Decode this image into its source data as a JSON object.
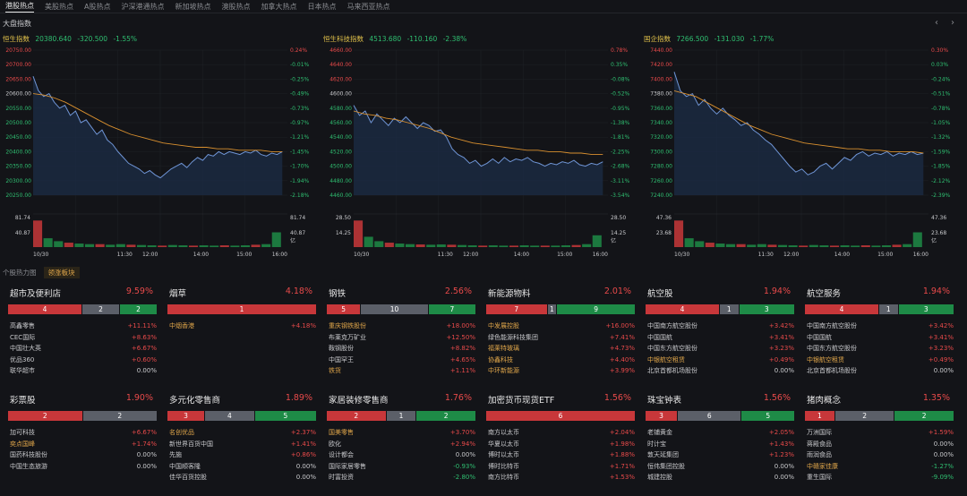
{
  "tabs": [
    "港股热点",
    "美股热点",
    "A股热点",
    "沪深港通热点",
    "新加坡热点",
    "澳股热点",
    "加拿大热点",
    "日本热点",
    "马来西亚热点"
  ],
  "section_title": "大盘指数",
  "nav": {
    "prev": "‹",
    "next": "›"
  },
  "charts": [
    {
      "name": "恒生指数",
      "value": "20380.640",
      "change": "-320.500",
      "pct": "-1.55%",
      "left_ticks": [
        "20750.00",
        "20700.00",
        "20650.00",
        "20600.00",
        "20550.00",
        "20500.00",
        "20450.00",
        "20400.00",
        "20350.00",
        "20300.00",
        "20250.00"
      ],
      "right_ticks": [
        "0.24%",
        "-0.01%",
        "-0.25%",
        "-0.49%",
        "-0.73%",
        "-0.97%",
        "-1.21%",
        "-1.45%",
        "-1.70%",
        "-1.94%",
        "-2.18%"
      ],
      "vol_top": "81.74",
      "vol_mid": "40.87",
      "vol_unit": "亿",
      "x_labels": [
        "10/30",
        "11:30",
        "12:00",
        "14:00",
        "15:00",
        "16:00"
      ],
      "price": [
        0.82,
        0.72,
        0.68,
        0.7,
        0.64,
        0.6,
        0.62,
        0.55,
        0.58,
        0.5,
        0.52,
        0.47,
        0.42,
        0.45,
        0.38,
        0.35,
        0.3,
        0.26,
        0.22,
        0.2,
        0.18,
        0.15,
        0.17,
        0.14,
        0.12,
        0.15,
        0.18,
        0.2,
        0.22,
        0.19,
        0.23,
        0.26,
        0.24,
        0.28,
        0.27,
        0.3,
        0.28,
        0.3,
        0.29,
        0.28,
        0.3,
        0.29,
        0.31,
        0.28,
        0.27,
        0.29,
        0.28,
        0.3
      ],
      "avg": [
        0.7,
        0.69,
        0.67,
        0.64,
        0.6,
        0.56,
        0.52,
        0.48,
        0.45,
        0.42,
        0.4,
        0.38,
        0.36,
        0.35,
        0.34,
        0.33,
        0.33,
        0.32,
        0.32,
        0.31,
        0.31,
        0.31,
        0.3,
        0.3
      ],
      "vol": [
        0.9,
        0.3,
        0.2,
        0.15,
        0.12,
        0.1,
        0.1,
        0.08,
        0.1,
        0.08,
        0.07,
        0.06,
        0.05,
        0.07,
        0.06,
        0.05,
        0.06,
        0.05,
        0.06,
        0.05,
        0.06,
        0.08,
        0.1,
        0.5
      ]
    },
    {
      "name": "恒生科技指数",
      "value": "4513.680",
      "change": "-110.160",
      "pct": "-2.38%",
      "left_ticks": [
        "4660.00",
        "4640.00",
        "4620.00",
        "4600.00",
        "4580.00",
        "4560.00",
        "4540.00",
        "4520.00",
        "4500.00",
        "4480.00",
        "4460.00"
      ],
      "right_ticks": [
        "0.78%",
        "0.35%",
        "-0.08%",
        "-0.52%",
        "-0.95%",
        "-1.38%",
        "-1.81%",
        "-2.25%",
        "-2.68%",
        "-3.11%",
        "-3.54%"
      ],
      "vol_top": "28.50",
      "vol_mid": "14.25",
      "vol_unit": "亿",
      "x_labels": [
        "10/30",
        "11:30",
        "12:00",
        "14:00",
        "15:00",
        "16:00"
      ],
      "price": [
        0.62,
        0.55,
        0.58,
        0.5,
        0.56,
        0.52,
        0.48,
        0.53,
        0.5,
        0.54,
        0.5,
        0.46,
        0.5,
        0.48,
        0.44,
        0.45,
        0.4,
        0.32,
        0.28,
        0.26,
        0.22,
        0.24,
        0.2,
        0.22,
        0.25,
        0.22,
        0.26,
        0.23,
        0.25,
        0.24,
        0.26,
        0.23,
        0.22,
        0.2,
        0.22,
        0.21,
        0.23,
        0.22,
        0.24,
        0.21,
        0.2,
        0.22,
        0.21,
        0.23
      ],
      "avg": [
        0.58,
        0.56,
        0.55,
        0.53,
        0.52,
        0.5,
        0.48,
        0.46,
        0.43,
        0.4,
        0.38,
        0.36,
        0.35,
        0.34,
        0.33,
        0.32,
        0.31,
        0.31,
        0.3,
        0.3,
        0.29,
        0.29,
        0.28,
        0.28
      ],
      "vol": [
        0.9,
        0.35,
        0.2,
        0.15,
        0.12,
        0.1,
        0.09,
        0.08,
        0.09,
        0.08,
        0.07,
        0.06,
        0.05,
        0.06,
        0.05,
        0.05,
        0.06,
        0.05,
        0.05,
        0.05,
        0.06,
        0.07,
        0.1,
        0.4
      ]
    },
    {
      "name": "国企指数",
      "value": "7266.500",
      "change": "-131.030",
      "pct": "-1.77%",
      "left_ticks": [
        "7440.00",
        "7420.00",
        "7400.00",
        "7380.00",
        "7360.00",
        "7340.00",
        "7320.00",
        "7300.00",
        "7280.00",
        "7260.00",
        "7240.00"
      ],
      "right_ticks": [
        "0.30%",
        "0.03%",
        "-0.24%",
        "-0.51%",
        "-0.78%",
        "-1.05%",
        "-1.32%",
        "-1.59%",
        "-1.85%",
        "-2.12%",
        "-2.39%"
      ],
      "vol_top": "47.36",
      "vol_mid": "23.68",
      "vol_unit": "亿",
      "x_labels": [
        "10/30",
        "11:30",
        "12:00",
        "14:00",
        "15:00",
        "16:00"
      ],
      "price": [
        0.85,
        0.72,
        0.68,
        0.7,
        0.62,
        0.66,
        0.6,
        0.56,
        0.6,
        0.55,
        0.52,
        0.48,
        0.5,
        0.45,
        0.42,
        0.38,
        0.35,
        0.3,
        0.25,
        0.2,
        0.16,
        0.18,
        0.14,
        0.16,
        0.2,
        0.22,
        0.18,
        0.22,
        0.26,
        0.24,
        0.28,
        0.3,
        0.27,
        0.29,
        0.28,
        0.3,
        0.27,
        0.29,
        0.28,
        0.3,
        0.28,
        0.29
      ],
      "avg": [
        0.72,
        0.7,
        0.68,
        0.64,
        0.6,
        0.56,
        0.52,
        0.48,
        0.45,
        0.42,
        0.4,
        0.38,
        0.36,
        0.35,
        0.34,
        0.33,
        0.32,
        0.32,
        0.31,
        0.31,
        0.3,
        0.3,
        0.3,
        0.29
      ],
      "vol": [
        0.9,
        0.3,
        0.2,
        0.15,
        0.12,
        0.1,
        0.1,
        0.08,
        0.1,
        0.08,
        0.07,
        0.06,
        0.05,
        0.07,
        0.06,
        0.05,
        0.06,
        0.05,
        0.06,
        0.05,
        0.06,
        0.08,
        0.1,
        0.5
      ]
    }
  ],
  "subbar": {
    "dropdown": "个股热力图",
    "leading": "领涨板块"
  },
  "sectors": [
    {
      "title": "超市及便利店",
      "pct": "9.59%",
      "up": 4,
      "flat": 2,
      "down": 2,
      "stocks": [
        [
          "高鑫零售",
          "+11.11%",
          false
        ],
        [
          "CEC国际",
          "+8.63%",
          false
        ],
        [
          "中国壮大英",
          "+6.67%",
          false
        ],
        [
          "优品360",
          "+0.60%",
          false
        ],
        [
          "联华超市",
          "0.00%",
          false
        ]
      ]
    },
    {
      "title": "烟草",
      "pct": "4.18%",
      "up": 1,
      "flat": 0,
      "down": 0,
      "stocks": [
        [
          "中烟香港",
          "+4.18%",
          true
        ]
      ]
    },
    {
      "title": "钢铁",
      "pct": "2.56%",
      "up": 5,
      "flat": 10,
      "down": 7,
      "stocks": [
        [
          "重庆钢铁股份",
          "+18.00%",
          true
        ],
        [
          "布莱克万矿业",
          "+12.50%",
          false
        ],
        [
          "鞍钢股份",
          "+8.82%",
          false
        ],
        [
          "中国罕王",
          "+4.65%",
          false
        ],
        [
          "铁货",
          "+1.11%",
          true
        ]
      ]
    },
    {
      "title": "新能源物料",
      "pct": "2.01%",
      "up": 7,
      "flat": 1,
      "down": 9,
      "stocks": [
        [
          "中发展控股",
          "+16.00%",
          true
        ],
        [
          "绿色能源科技集团",
          "+7.41%",
          false
        ],
        [
          "福莱特玻璃",
          "+4.73%",
          true
        ],
        [
          "协鑫科技",
          "+4.40%",
          true
        ],
        [
          "中环新能源",
          "+3.99%",
          true
        ]
      ]
    },
    {
      "title": "航空股",
      "pct": "1.94%",
      "up": 4,
      "flat": 1,
      "down": 3,
      "stocks": [
        [
          "中国南方航空股份",
          "+3.42%",
          false
        ],
        [
          "中国国航",
          "+3.41%",
          false
        ],
        [
          "中国东方航空股份",
          "+3.23%",
          false
        ],
        [
          "中银航空租赁",
          "+0.49%",
          true
        ],
        [
          "北京首都机场股份",
          "0.00%",
          false
        ]
      ]
    },
    {
      "title": "航空服务",
      "pct": "1.94%",
      "up": 4,
      "flat": 1,
      "down": 3,
      "stocks": [
        [
          "中国南方航空股份",
          "+3.42%",
          false
        ],
        [
          "中国国航",
          "+3.41%",
          false
        ],
        [
          "中国东方航空股份",
          "+3.23%",
          false
        ],
        [
          "中银航空租赁",
          "+0.49%",
          true
        ],
        [
          "北京首都机场股份",
          "0.00%",
          false
        ]
      ]
    },
    {
      "title": "彩票股",
      "pct": "1.90%",
      "up": 2,
      "flat": 2,
      "down": 0,
      "stocks": [
        [
          "加可科技",
          "+6.67%",
          false
        ],
        [
          "奕点国峰",
          "+1.74%",
          true
        ],
        [
          "国药科技股份",
          "0.00%",
          false
        ],
        [
          "中国生态旅游",
          "0.00%",
          false
        ]
      ]
    },
    {
      "title": "多元化零售商",
      "pct": "1.89%",
      "up": 3,
      "flat": 4,
      "down": 5,
      "stocks": [
        [
          "名创优品",
          "+2.37%",
          true
        ],
        [
          "新世界百货中国",
          "+1.41%",
          false
        ],
        [
          "先施",
          "+0.86%",
          false
        ],
        [
          "中国顺客隆",
          "0.00%",
          false
        ],
        [
          "佳华百货控股",
          "0.00%",
          false
        ]
      ]
    },
    {
      "title": "家居装修零售商",
      "pct": "1.76%",
      "up": 2,
      "flat": 1,
      "down": 2,
      "stocks": [
        [
          "国美零售",
          "+3.70%",
          true
        ],
        [
          "欧化",
          "+2.94%",
          false
        ],
        [
          "设计都会",
          "0.00%",
          false
        ],
        [
          "国际家居零售",
          "-0.93%",
          false
        ],
        [
          "时富投资",
          "-2.80%",
          false
        ]
      ]
    },
    {
      "title": "加密货币现货ETF",
      "pct": "1.56%",
      "up": 6,
      "flat": 0,
      "down": 0,
      "stocks": [
        [
          "南方以太币",
          "+2.04%",
          false
        ],
        [
          "华夏以太币",
          "+1.98%",
          false
        ],
        [
          "博时以太币",
          "+1.88%",
          false
        ],
        [
          "博时比特币",
          "+1.71%",
          false
        ],
        [
          "南方比特币",
          "+1.53%",
          false
        ]
      ]
    },
    {
      "title": "珠宝钟表",
      "pct": "1.56%",
      "up": 3,
      "flat": 6,
      "down": 5,
      "stocks": [
        [
          "老铺黄金",
          "+2.05%",
          false
        ],
        [
          "时计宝",
          "+1.43%",
          false
        ],
        [
          "敦天延集团",
          "+1.23%",
          false
        ],
        [
          "恒伟集团控股",
          "0.00%",
          false
        ],
        [
          "城建控股",
          "0.00%",
          false
        ]
      ]
    },
    {
      "title": "猪肉概念",
      "pct": "1.35%",
      "up": 1,
      "flat": 2,
      "down": 2,
      "stocks": [
        [
          "万洲国际",
          "+1.59%",
          false
        ],
        [
          "蒋殿食品",
          "0.00%",
          false
        ],
        [
          "雨润食品",
          "0.00%",
          false
        ],
        [
          "中赣家佳康",
          "-1.27%",
          true
        ],
        [
          "重生国际",
          "-9.09%",
          false
        ]
      ]
    }
  ]
}
